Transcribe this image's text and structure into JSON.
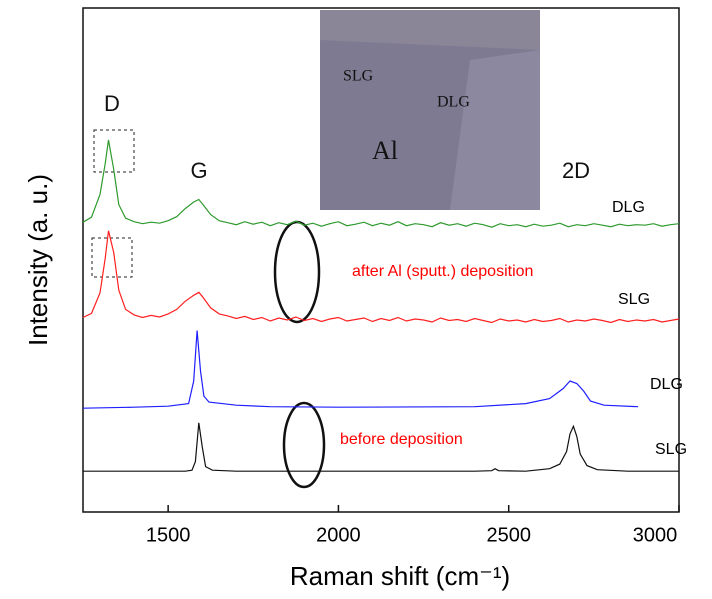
{
  "chart_data": {
    "type": "line",
    "x_label": "Raman shift (cm⁻¹)",
    "y_label": "Intensity (a. u.)",
    "xlim": [
      1250,
      3000
    ],
    "ylim": [
      0,
      100
    ],
    "xticks": [
      1500,
      2000,
      2500,
      3000
    ],
    "annotations": [
      {
        "text": "D"
      },
      {
        "text": "G"
      },
      {
        "text": "2D"
      },
      {
        "text": "after Al (sputt.) deposition",
        "color": "#ff0000"
      },
      {
        "text": "before deposition",
        "color": "#ff0000"
      },
      {
        "text": "SLG"
      },
      {
        "text": "DLG"
      },
      {
        "text": "Al"
      }
    ],
    "series": [
      {
        "name": "DLG",
        "color": "#2e9a2e",
        "x": [
          1250,
          1275,
          1300,
          1315,
          1325,
          1340,
          1355,
          1375,
          1400,
          1425,
          1450,
          1475,
          1500,
          1525,
          1550,
          1575,
          1590,
          1600,
          1625,
          1650,
          1675,
          1700,
          1725,
          1750,
          1775,
          1800,
          1825,
          1850,
          1875,
          1900,
          1925,
          1950,
          1975,
          2000,
          2025,
          2050,
          2075,
          2100,
          2125,
          2150,
          2175,
          2200,
          2225,
          2250,
          2275,
          2300,
          2325,
          2350,
          2375,
          2400,
          2425,
          2450,
          2475,
          2500,
          2525,
          2550,
          2575,
          2600,
          2625,
          2650,
          2675,
          2700,
          2725,
          2750,
          2775,
          2800,
          2825,
          2850,
          2875,
          2900,
          2925,
          2950,
          2975,
          3000
        ],
        "values": [
          57.5,
          58.5,
          63,
          69,
          73.8,
          68,
          61,
          58.3,
          57.6,
          57.2,
          57.5,
          57.3,
          57.8,
          58.6,
          60.2,
          61.5,
          62,
          61.2,
          59,
          57.8,
          57.4,
          57.0,
          57.6,
          57.1,
          57.5,
          56.8,
          57.4,
          57.0,
          57.7,
          56.9,
          57.3,
          56.7,
          57.2,
          57.6,
          56.8,
          57.1,
          57.5,
          56.8,
          57.3,
          56.9,
          57.6,
          56.8,
          57.2,
          57.0,
          56.6,
          57.4,
          56.9,
          57.2,
          56.7,
          57.3,
          57.0,
          56.5,
          57.2,
          56.8,
          57.0,
          56.6,
          57.1,
          56.7,
          56.9,
          57.3,
          56.6,
          57.0,
          56.8,
          57.2,
          56.9,
          56.6,
          57.1,
          56.8,
          57.0,
          56.9,
          57.2,
          56.7,
          57.0,
          57.2
        ]
      },
      {
        "name": "SLG",
        "color": "#ff2020",
        "x": [
          1250,
          1275,
          1300,
          1315,
          1325,
          1340,
          1355,
          1375,
          1400,
          1425,
          1450,
          1475,
          1500,
          1525,
          1550,
          1575,
          1590,
          1600,
          1625,
          1650,
          1675,
          1700,
          1725,
          1750,
          1775,
          1800,
          1825,
          1850,
          1875,
          1900,
          1925,
          1950,
          1975,
          2000,
          2025,
          2050,
          2075,
          2100,
          2125,
          2150,
          2175,
          2200,
          2225,
          2250,
          2275,
          2300,
          2325,
          2350,
          2375,
          2400,
          2425,
          2450,
          2475,
          2500,
          2525,
          2550,
          2575,
          2600,
          2625,
          2650,
          2675,
          2700,
          2725,
          2750,
          2775,
          2800,
          2825,
          2850,
          2875,
          2900,
          2925,
          2950,
          2975,
          3000
        ],
        "values": [
          38.6,
          39.4,
          43.5,
          50.2,
          55.8,
          51.5,
          44,
          40.2,
          39.1,
          38.6,
          39,
          38.7,
          39.3,
          40.2,
          41.8,
          43,
          43.6,
          42.8,
          40.5,
          39.3,
          38.9,
          38.4,
          38.8,
          38.2,
          38.6,
          37.9,
          38.5,
          38.1,
          38.7,
          38.0,
          38.4,
          37.8,
          38.3,
          38.6,
          37.9,
          38.2,
          38.5,
          37.8,
          38.4,
          38.0,
          38.6,
          37.9,
          38.3,
          38.1,
          37.7,
          38.5,
          38.0,
          38.2,
          37.8,
          38.4,
          38.0,
          37.6,
          38.3,
          37.9,
          38.1,
          37.7,
          38.2,
          37.8,
          38.0,
          38.4,
          37.7,
          38.1,
          37.9,
          38.3,
          38.0,
          37.6,
          38.2,
          37.8,
          38.1,
          37.9,
          38.2,
          37.7,
          38.0,
          38.3
        ]
      },
      {
        "name": "DLG",
        "color": "#1f1fff",
        "x": [
          1250,
          1400,
          1500,
          1560,
          1575,
          1585,
          1595,
          1605,
          1620,
          1700,
          1800,
          2000,
          2400,
          2550,
          2620,
          2660,
          2680,
          2700,
          2720,
          2740,
          2780,
          2880
        ],
        "values": [
          20.6,
          20.8,
          21,
          21.5,
          26,
          36,
          28,
          23,
          21.8,
          21.2,
          20.9,
          20.8,
          20.9,
          21.5,
          22.5,
          24.5,
          26,
          25.5,
          24,
          22,
          21.2,
          20.9
        ]
      },
      {
        "name": "SLG",
        "color": "#111111",
        "x": [
          1250,
          1400,
          1550,
          1570,
          1580,
          1590,
          1600,
          1610,
          1630,
          1700,
          2400,
          2450,
          2460,
          2470,
          2550,
          2620,
          2650,
          2670,
          2680,
          2690,
          2700,
          2710,
          2730,
          2760,
          2850,
          3000
        ],
        "values": [
          8.1,
          8.1,
          8.1,
          8.3,
          10,
          17.7,
          13,
          9,
          8.3,
          8.1,
          8.1,
          8.2,
          8.6,
          8.2,
          8.1,
          8.6,
          9.5,
          12,
          15.5,
          17,
          15,
          11.5,
          9.2,
          8.4,
          8.1,
          8.1
        ]
      }
    ]
  }
}
